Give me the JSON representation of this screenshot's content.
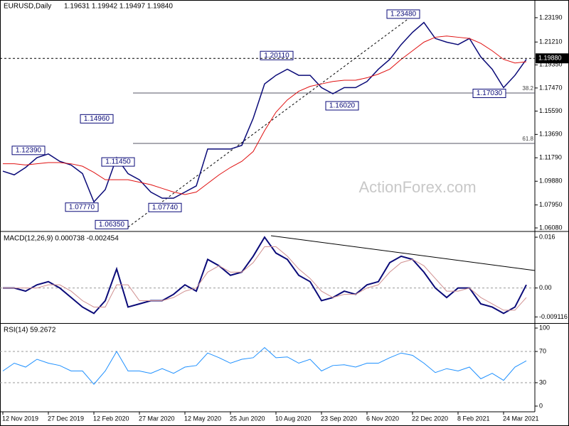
{
  "chart_data": [
    {
      "type": "line",
      "title": "EURUSD,Daily",
      "subtitle": "1.19631 1.19942 1.19497 1.19840",
      "watermark": "ActionForex.com",
      "ylim": [
        1.0585,
        1.2463
      ],
      "yticks": [
        {
          "value": 1.2319,
          "label": "1.23190"
        },
        {
          "value": 1.2121,
          "label": "1.21210"
        },
        {
          "value": 1.1935,
          "label": "1.19350"
        },
        {
          "value": 1.1747,
          "label": "1.17470"
        },
        {
          "value": 1.1559,
          "label": "1.15590"
        },
        {
          "value": 1.1369,
          "label": "1.13690"
        },
        {
          "value": 1.1179,
          "label": "1.11790"
        },
        {
          "value": 1.0988,
          "label": "1.09880"
        },
        {
          "value": 1.0795,
          "label": "1.07950"
        },
        {
          "value": 1.0608,
          "label": "1.06080"
        }
      ],
      "current_price": {
        "value": 1.1988,
        "label": "1.19880"
      },
      "levels": [
        {
          "value": 1.1706,
          "label": "38.2"
        },
        {
          "value": 1.1296,
          "label": "61.8"
        }
      ],
      "annotations": [
        {
          "value": 1.2348,
          "label": "1.23480"
        },
        {
          "value": 1.2011,
          "label": "1.20110"
        },
        {
          "value": 1.1602,
          "label": "1.16020"
        },
        {
          "value": 1.1703,
          "label": "1.17030"
        },
        {
          "value": 1.1496,
          "label": "1.14960"
        },
        {
          "value": 1.1239,
          "label": "1.12390"
        },
        {
          "value": 1.1145,
          "label": "1.11450"
        },
        {
          "value": 1.0777,
          "label": "1.07770"
        },
        {
          "value": 1.0774,
          "label": "1.07740"
        },
        {
          "value": 1.0635,
          "label": "1.06350"
        }
      ],
      "series": [
        {
          "name": "Close",
          "color": "#0a0a78",
          "width": 1.5,
          "values": [
            1.107,
            1.104,
            1.11,
            1.118,
            1.121,
            1.115,
            1.112,
            1.105,
            1.082,
            1.092,
            1.118,
            1.105,
            1.1,
            1.09,
            1.085,
            1.085,
            1.09,
            1.095,
            1.125,
            1.125,
            1.125,
            1.128,
            1.15,
            1.178,
            1.185,
            1.19,
            1.185,
            1.185,
            1.175,
            1.17,
            1.175,
            1.175,
            1.18,
            1.19,
            1.198,
            1.21,
            1.22,
            1.228,
            1.215,
            1.212,
            1.21,
            1.215,
            1.2,
            1.19,
            1.175,
            1.185,
            1.198
          ]
        },
        {
          "name": "MA",
          "color": "#e01010",
          "width": 1,
          "values": [
            1.113,
            1.113,
            1.112,
            1.113,
            1.114,
            1.114,
            1.113,
            1.111,
            1.106,
            1.1,
            1.1,
            1.1,
            1.098,
            1.096,
            1.093,
            1.09,
            1.088,
            1.09,
            1.097,
            1.104,
            1.11,
            1.115,
            1.123,
            1.14,
            1.155,
            1.165,
            1.172,
            1.176,
            1.178,
            1.18,
            1.181,
            1.181,
            1.183,
            1.186,
            1.19,
            1.198,
            1.205,
            1.212,
            1.216,
            1.217,
            1.216,
            1.215,
            1.211,
            1.205,
            1.198,
            1.195,
            1.196
          ]
        }
      ]
    },
    {
      "type": "line",
      "title": "MACD(12,26,9) 0.000738 -0.002454",
      "ylim": [
        -0.01104,
        0.01758
      ],
      "yticks": [
        0.016,
        {
          "value": 0,
          "label": "0.00"
        },
        -0.009116
      ],
      "grid_at": [
        0
      ],
      "series": [
        {
          "name": "MACD",
          "color": "#0a0a78",
          "width": 2,
          "values": [
            0,
            0,
            -0.001,
            0.001,
            0.002,
            0,
            -0.003,
            -0.006,
            -0.008,
            -0.004,
            0.006,
            -0.006,
            -0.005,
            -0.004,
            -0.004,
            -0.002,
            0.001,
            -0.001,
            0.009,
            0.007,
            0.004,
            0.005,
            0.01,
            0.016,
            0.011,
            0.009,
            0.004,
            0.002,
            -0.004,
            -0.003,
            -0.001,
            -0.002,
            0.001,
            0.002,
            0.008,
            0.01,
            0.009,
            0.005,
            0,
            -0.003,
            0,
            0,
            -0.005,
            -0.006,
            -0.008,
            -0.006,
            0.001
          ]
        },
        {
          "name": "Signal",
          "color": "#d09090",
          "width": 1,
          "values": [
            0,
            0,
            0,
            0,
            0.001,
            0.001,
            -0.001,
            -0.004,
            -0.006,
            -0.006,
            0.001,
            0.001,
            -0.004,
            -0.004,
            -0.004,
            -0.003,
            -0.001,
            0,
            0.005,
            0.007,
            0.005,
            0.005,
            0.008,
            0.013,
            0.013,
            0.01,
            0.006,
            0.003,
            -0.001,
            -0.003,
            -0.002,
            -0.002,
            0,
            0.001,
            0.005,
            0.008,
            0.009,
            0.007,
            0.003,
            -0.001,
            -0.001,
            0,
            -0.003,
            -0.005,
            -0.007,
            -0.007,
            -0.003
          ]
        }
      ]
    },
    {
      "type": "line",
      "title": "RSI(14) 59.2672",
      "ylim": [
        -7.3,
        105.5
      ],
      "yticks": [
        100,
        70,
        30,
        0
      ],
      "grid_at": [
        70,
        30
      ],
      "date_labels": [
        "12 Nov 2019",
        "27 Dec 2019",
        "12 Feb 2020",
        "27 Mar 2020",
        "12 May 2020",
        "25 Jun 2020",
        "10 Aug 2020",
        "23 Sep 2020",
        "6 Nov 2020",
        "22 Dec 2020",
        "8 Feb 2021",
        "24 Mar 2021"
      ],
      "series": [
        {
          "name": "RSI",
          "color": "#1e90ff",
          "width": 1,
          "values": [
            45,
            55,
            50,
            60,
            55,
            52,
            45,
            45,
            28,
            45,
            70,
            45,
            45,
            42,
            48,
            42,
            50,
            52,
            68,
            62,
            55,
            60,
            62,
            75,
            62,
            63,
            55,
            60,
            45,
            52,
            53,
            50,
            55,
            55,
            62,
            68,
            65,
            55,
            43,
            48,
            45,
            50,
            35,
            42,
            33,
            50,
            58
          ]
        }
      ]
    }
  ]
}
